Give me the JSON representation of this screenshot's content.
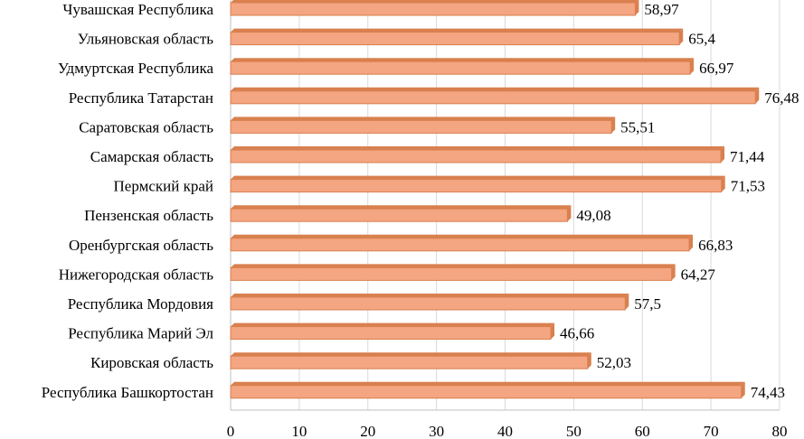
{
  "chart_data": {
    "type": "bar",
    "orientation": "horizontal",
    "style": "3d-cylinder",
    "color": "#F4A582",
    "color_dark": "#D9804F",
    "title": "",
    "xlabel": "",
    "ylabel": "",
    "xlim": [
      0,
      80
    ],
    "x_ticks": [
      "0",
      "10",
      "20",
      "30",
      "40",
      "50",
      "60",
      "70",
      "80"
    ],
    "grid": true,
    "categories": [
      "Чувашская Республика",
      "Ульяновская область",
      "Удмуртская Республика",
      "Республика Татарстан",
      "Саратовская область",
      "Самарская область",
      "Пермский край",
      "Пензенская область",
      "Оренбургская область",
      "Нижегородская область",
      "Республика Мордовия",
      "Республика Марий Эл",
      "Кировская область",
      "Республика Башкортостан"
    ],
    "values": [
      58.97,
      65.4,
      66.97,
      76.48,
      55.51,
      71.44,
      71.53,
      49.08,
      66.83,
      64.27,
      57.5,
      46.66,
      52.03,
      74.43
    ],
    "value_labels": [
      "58,97",
      "65,4",
      "66,97",
      "76,48",
      "55,51",
      "71,44",
      "71,53",
      "49,08",
      "66,83",
      "64,27",
      "57,5",
      "46,66",
      "52,03",
      "74,43"
    ]
  }
}
